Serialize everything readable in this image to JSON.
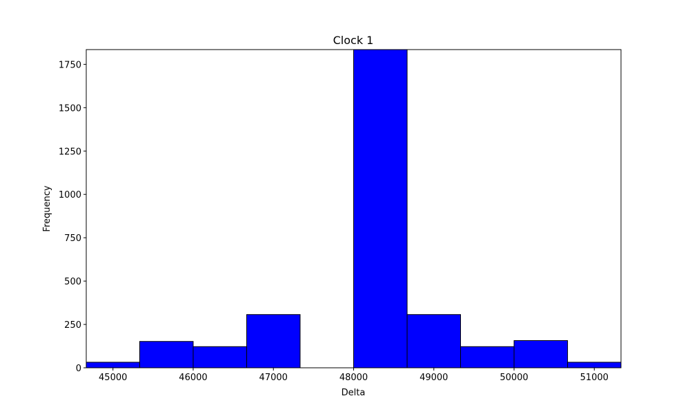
{
  "chart_data": {
    "type": "bar",
    "title": "Clock 1",
    "xlabel": "Delta",
    "ylabel": "Frequency",
    "xlim": [
      44667,
      51333
    ],
    "ylim": [
      0,
      1835
    ],
    "xticks": [
      45000,
      46000,
      47000,
      48000,
      49000,
      50000,
      51000
    ],
    "yticks": [
      0,
      250,
      500,
      750,
      1000,
      1250,
      1500,
      1750
    ],
    "bin_edges": [
      44667,
      45333,
      46000,
      46667,
      47333,
      48000,
      48667,
      49333,
      50000,
      50667,
      51333
    ],
    "values": [
      32,
      152,
      122,
      307,
      0,
      1835,
      307,
      122,
      157,
      32
    ],
    "grid": false,
    "colors": {
      "bar_fill": "#0000ff",
      "bar_edge": "#000000"
    }
  }
}
